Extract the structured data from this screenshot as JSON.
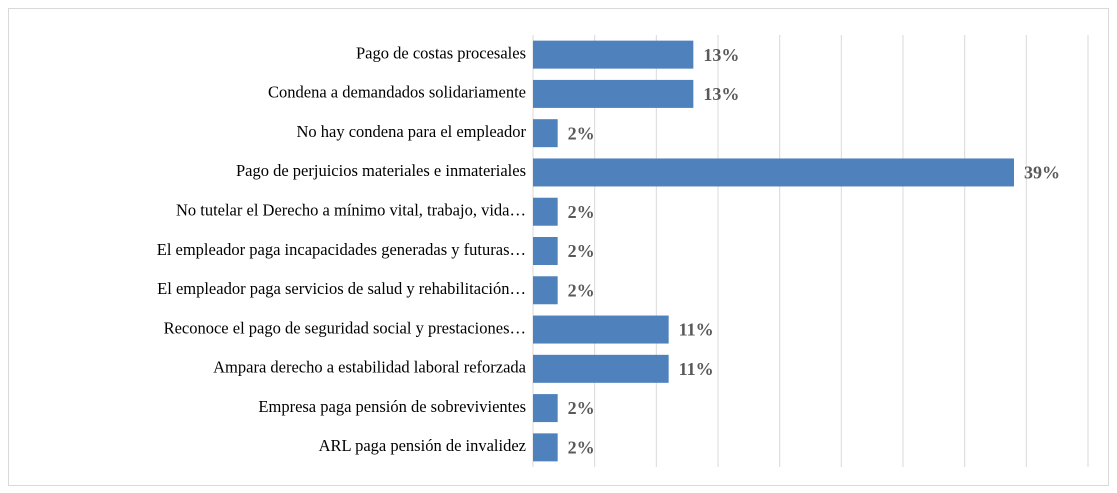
{
  "chart_data": {
    "type": "bar",
    "orientation": "horizontal",
    "categories": [
      "Pago de costas procesales",
      "Condena a demandados solidariamente",
      "No hay condena para el empleador",
      "Pago de perjuicios materiales e inmateriales",
      "No tutelar el Derecho a mínimo vital, trabajo, vida…",
      "El empleador paga incapacidades generadas y futuras…",
      "El empleador paga servicios de salud y rehabilitación…",
      "Reconoce el pago de seguridad social y prestaciones…",
      "Ampara derecho a estabilidad laboral reforzada",
      "Empresa paga pensión de sobrevivientes",
      "ARL paga pensión de invalidez"
    ],
    "values": [
      13,
      13,
      2,
      39,
      2,
      2,
      2,
      11,
      11,
      2,
      2
    ],
    "value_labels": [
      "13%",
      "13%",
      "2%",
      "39%",
      "2%",
      "2%",
      "2%",
      "11%",
      "11%",
      "2%",
      "2%"
    ],
    "color": "#4f81bd",
    "xlim": [
      0,
      45
    ],
    "xticks": [
      0,
      5,
      10,
      15,
      20,
      25,
      30,
      35,
      40,
      45
    ],
    "grid": true
  }
}
